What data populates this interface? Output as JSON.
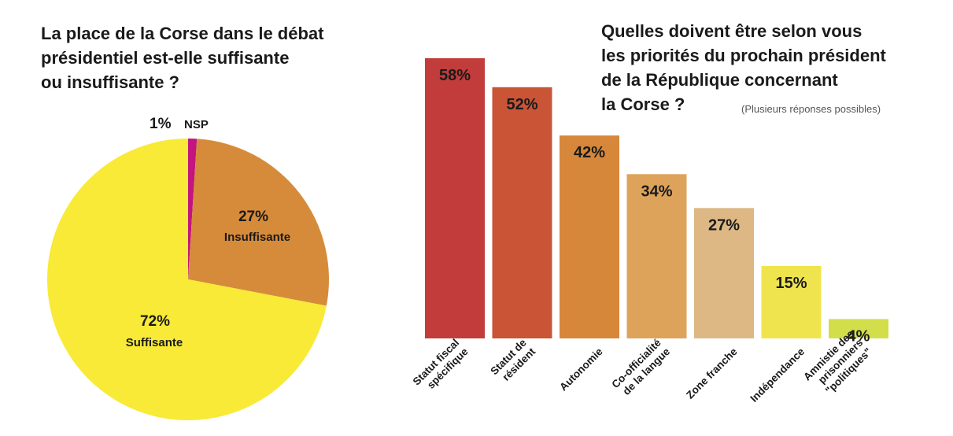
{
  "pie_title": [
    "La place de la Corse dans le débat",
    "présidentiel est-elle suffisante",
    "ou insuffisante ?"
  ],
  "bar_title": [
    "Quelles doivent être selon vous",
    "les priorités du prochain président",
    "de la République concernant",
    "la Corse ?"
  ],
  "bar_note": "(Plusieurs réponses possibles)",
  "chart_data": [
    {
      "type": "pie",
      "slices": [
        {
          "label": "NSP",
          "value": 1,
          "display": "1%",
          "color": "#c2157d"
        },
        {
          "label": "Insuffisante",
          "value": 27,
          "display": "27%",
          "color": "#d68b3a"
        },
        {
          "label": "Suffisante",
          "value": 72,
          "display": "72%",
          "color": "#f8ea36"
        }
      ]
    },
    {
      "type": "bar",
      "categories": [
        [
          "Statut fiscal",
          "spécifique"
        ],
        [
          "Statut de",
          "résident"
        ],
        [
          "Autonomie"
        ],
        [
          "Co-officialité",
          "de la langue"
        ],
        [
          "Zone franche"
        ],
        [
          "Indépendance"
        ],
        [
          "Amnistie des",
          "prisonniers",
          "\"politiques\""
        ]
      ],
      "values": [
        58,
        52,
        42,
        34,
        27,
        15,
        4
      ],
      "labels": [
        "58%",
        "52%",
        "42%",
        "34%",
        "27%",
        "15%",
        "4%"
      ],
      "colors": [
        "#c13c3a",
        "#c95436",
        "#d6873a",
        "#dea35b",
        "#ddb885",
        "#f0e44e",
        "#d2de4a"
      ],
      "ylim": [
        0,
        58
      ]
    }
  ]
}
